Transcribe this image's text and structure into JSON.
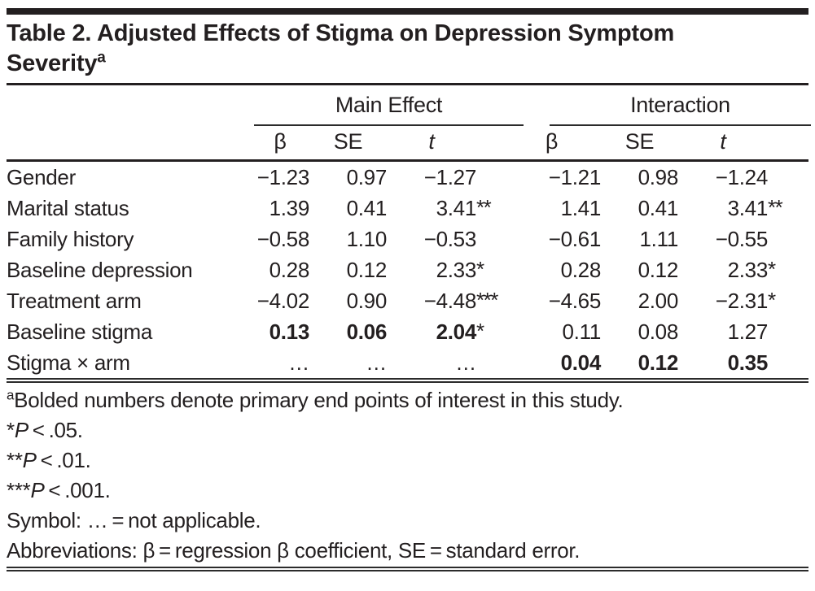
{
  "header": {
    "title_line1": "Table 2. Adjusted Effects of Stigma on Depression Symptom",
    "title_line2": "Severity",
    "title_superscript": "a"
  },
  "table": {
    "group_headers": [
      {
        "label": "Main Effect"
      },
      {
        "label": "Interaction"
      }
    ],
    "column_headers": [
      "β",
      "SE",
      "t",
      "β",
      "SE",
      "t"
    ],
    "rows": [
      {
        "label": "Gender",
        "cells": [
          {
            "v": "−1.23"
          },
          {
            "v": "0.97"
          },
          {
            "v": "−1.27"
          },
          {
            "v": "−1.21"
          },
          {
            "v": "0.98"
          },
          {
            "v": "−1.24"
          }
        ]
      },
      {
        "label": "Marital status",
        "cells": [
          {
            "v": "1.39"
          },
          {
            "v": "0.41"
          },
          {
            "v": "3.41",
            "sup": "**"
          },
          {
            "v": "1.41"
          },
          {
            "v": "0.41"
          },
          {
            "v": "3.41",
            "sup": "**"
          }
        ]
      },
      {
        "label": "Family history",
        "cells": [
          {
            "v": "−0.58"
          },
          {
            "v": "1.10"
          },
          {
            "v": "−0.53"
          },
          {
            "v": "−0.61"
          },
          {
            "v": "1.11"
          },
          {
            "v": "−0.55"
          }
        ]
      },
      {
        "label": "Baseline depression",
        "cells": [
          {
            "v": "0.28"
          },
          {
            "v": "0.12"
          },
          {
            "v": "2.33",
            "sup": "*"
          },
          {
            "v": "0.28"
          },
          {
            "v": "0.12"
          },
          {
            "v": "2.33",
            "sup": "*"
          }
        ]
      },
      {
        "label": "Treatment arm",
        "cells": [
          {
            "v": "−4.02"
          },
          {
            "v": "0.90"
          },
          {
            "v": "−4.48",
            "sup": "***"
          },
          {
            "v": "−4.65"
          },
          {
            "v": "2.00"
          },
          {
            "v": "−2.31",
            "sup": "*"
          }
        ]
      },
      {
        "label": "Baseline stigma",
        "cells": [
          {
            "v": "0.13",
            "b": true
          },
          {
            "v": "0.06",
            "b": true
          },
          {
            "v": "2.04",
            "b": true,
            "sup": "*"
          },
          {
            "v": "0.11"
          },
          {
            "v": "0.08"
          },
          {
            "v": "1.27"
          }
        ]
      },
      {
        "label": "Stigma × arm",
        "cells": [
          {
            "v": "…"
          },
          {
            "v": "…"
          },
          {
            "v": "…"
          },
          {
            "v": "0.04",
            "b": true
          },
          {
            "v": "0.12",
            "b": true
          },
          {
            "v": "0.35",
            "b": true
          }
        ]
      }
    ]
  },
  "footnotes": {
    "a_sup": "a",
    "a_text": "Bolded numbers denote primary end points of interest in this study.",
    "p_notes": [
      {
        "stars": "*",
        "p": "P",
        "rest": " < .05."
      },
      {
        "stars": "**",
        "p": "P",
        "rest": " < .01."
      },
      {
        "stars": "***",
        "p": "P",
        "rest": " < .001."
      }
    ],
    "symbol": "Symbol: … = not applicable.",
    "abbreviations": "Abbreviations: β = regression β coefficient, SE = standard error."
  },
  "colors": {
    "text": "#231f20",
    "rule": "#2b2b2b",
    "background": "#ffffff"
  }
}
